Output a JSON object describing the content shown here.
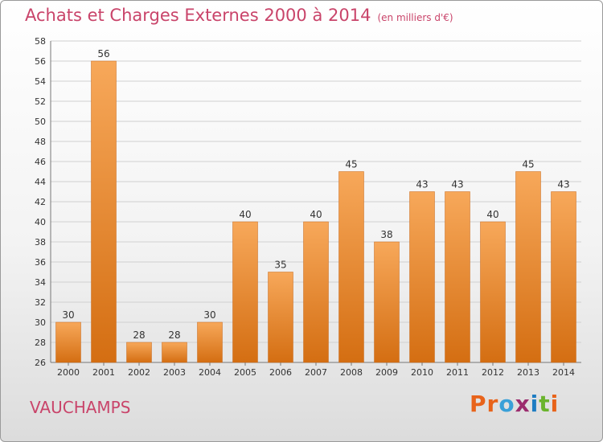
{
  "header": {
    "title": "Achats et Charges Externes 2000 à 2014",
    "unit": "(en milliers d'€)"
  },
  "footer": {
    "town": "VAUCHAMPS",
    "logo": "Proxiti"
  },
  "colors": {
    "title": "#c9446a",
    "bar_light": "#f7a85a",
    "bar_dark": "#d46e12",
    "logo_letters": [
      "#e8631a",
      "#e8631a",
      "#39a0d8",
      "#9c2c6e",
      "#1e7dc2",
      "#6ab42d",
      "#e8631a"
    ]
  },
  "chart_data": {
    "type": "bar",
    "title": "Achats et Charges Externes 2000 à 2014",
    "categories": [
      "2000",
      "2001",
      "2002",
      "2003",
      "2004",
      "2005",
      "2006",
      "2007",
      "2008",
      "2009",
      "2010",
      "2011",
      "2012",
      "2013",
      "2014"
    ],
    "values": [
      30,
      56,
      28,
      28,
      30,
      40,
      35,
      40,
      45,
      38,
      43,
      43,
      40,
      45,
      43
    ],
    "xlabel": "",
    "ylabel": "",
    "ylim": [
      26,
      58
    ],
    "yticks": [
      26,
      28,
      30,
      32,
      34,
      36,
      38,
      40,
      42,
      44,
      46,
      48,
      50,
      52,
      54,
      56,
      58
    ],
    "grid": true,
    "legend": "none"
  }
}
